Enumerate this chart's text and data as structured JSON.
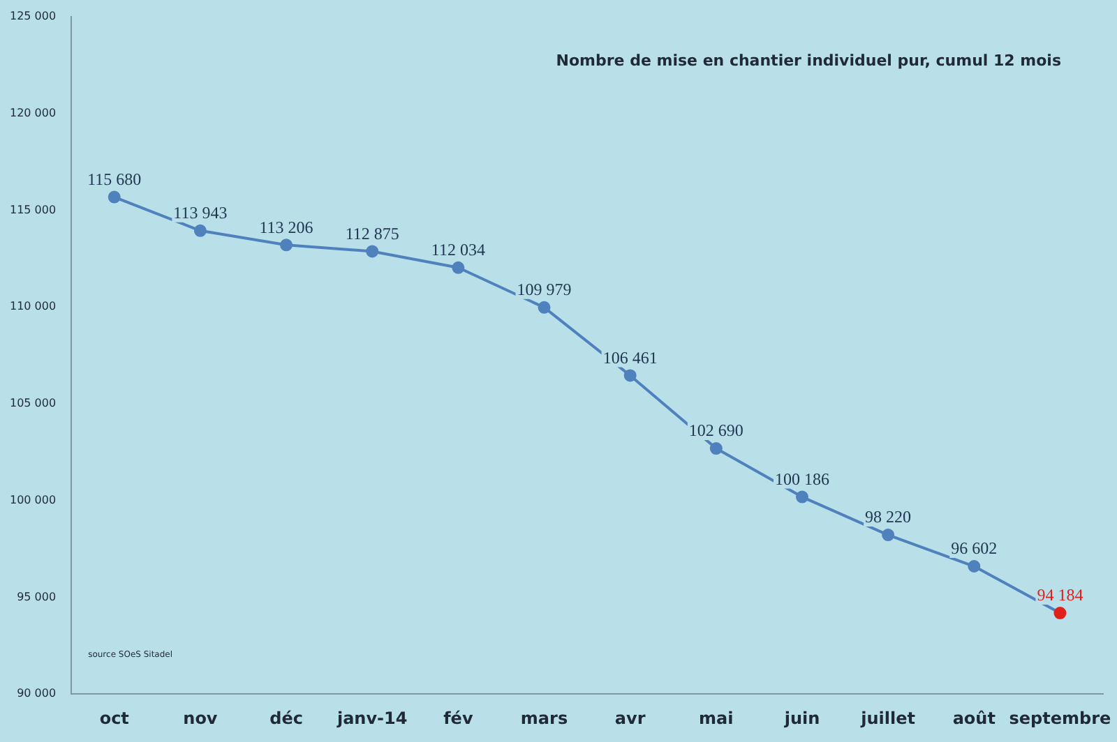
{
  "chart_data": {
    "type": "line",
    "title": "Nombre de mise en chantier individuel pur, cumul 12 mois",
    "categories": [
      "oct",
      "nov",
      "déc",
      "janv-14",
      "fév",
      "mars",
      "avr",
      "mai",
      "juin",
      "juillet",
      "août",
      "septembre"
    ],
    "values": [
      115680,
      113943,
      113206,
      112875,
      112034,
      109979,
      106461,
      102690,
      100186,
      98220,
      96602,
      94184
    ],
    "value_labels": [
      "115 680",
      "113 943",
      "113 206",
      "112 875",
      "112 034",
      "109 979",
      "106 461",
      "102 690",
      "100 186",
      "98 220",
      "96 602",
      "94 184"
    ],
    "color": "#4f81bd",
    "colors": [
      "#4f81bd",
      "#4f81bd",
      "#4f81bd",
      "#4f81bd",
      "#4f81bd",
      "#4f81bd",
      "#4f81bd",
      "#4f81bd",
      "#4f81bd",
      "#4f81bd",
      "#4f81bd",
      "#e0201b"
    ],
    "marker": "circle",
    "line_style": "solid",
    "grid": false,
    "legend": false,
    "ylim": [
      90000,
      125000
    ],
    "yticks": [
      {
        "value": 90000,
        "label": "90 000"
      },
      {
        "value": 95000,
        "label": "95 000"
      },
      {
        "value": 100000,
        "label": "100 000"
      },
      {
        "value": 105000,
        "label": "105 000"
      },
      {
        "value": 110000,
        "label": "110 000"
      },
      {
        "value": 115000,
        "label": "115 000"
      },
      {
        "value": 120000,
        "label": "120 000"
      },
      {
        "value": 125000,
        "label": "125 000"
      }
    ],
    "annotations": [
      "source SOeS Sitadel"
    ]
  }
}
